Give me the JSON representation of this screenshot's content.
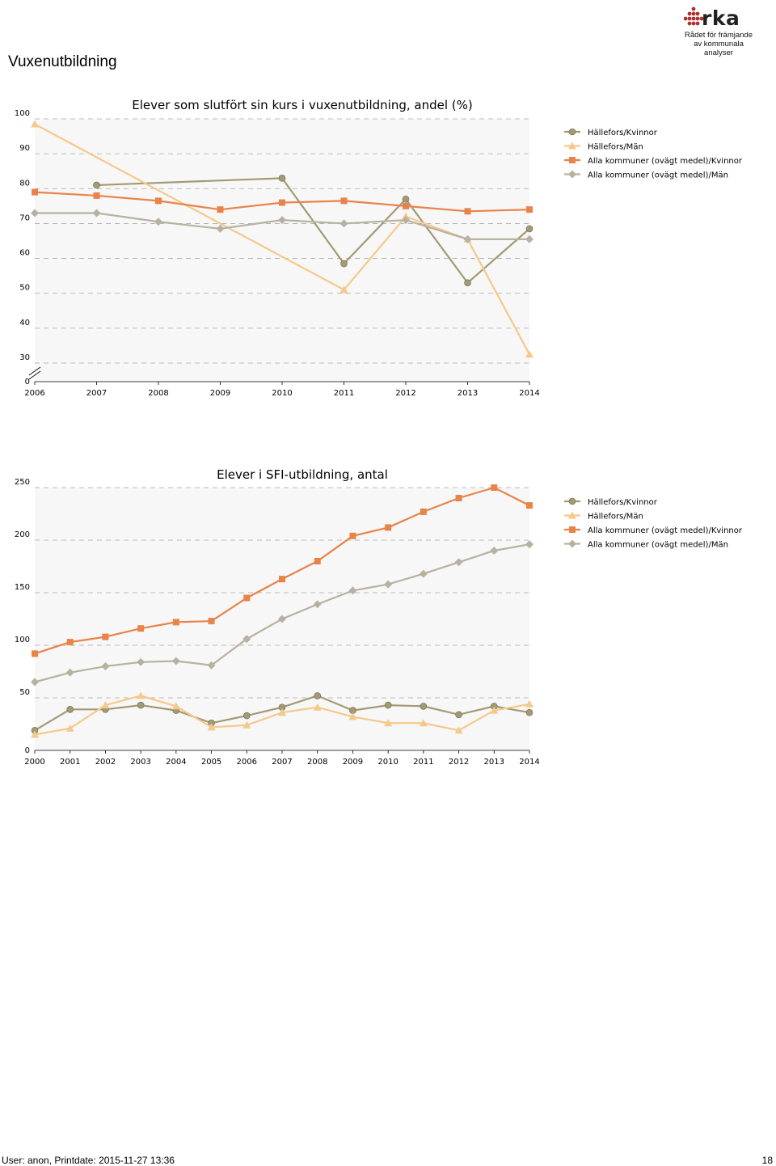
{
  "page": {
    "title": "Vuxenutbildning"
  },
  "logo": {
    "brand": "rka",
    "line1": "Rådet för främjande",
    "line2": "av kommunala analyser"
  },
  "footer": {
    "left": "User: anon, Printdate: 2015-11-27 13:36",
    "right": "18"
  },
  "colors": {
    "hf_kvinnor": "#a39a73",
    "hf_man": "#f5c98b",
    "alla_kvinnor": "#e8834a",
    "alla_man": "#b7b2a0",
    "plot_bg": "#f7f7f7",
    "grid": "#a8a8a8"
  },
  "chart_data": [
    {
      "type": "line",
      "title": "Elever som slutfört sin kurs i vuxenutbildning, andel (%)",
      "xlabel": "",
      "ylabel": "",
      "x": [
        "2006",
        "2007",
        "2008",
        "2009",
        "2010",
        "2011",
        "2012",
        "2013",
        "2014"
      ],
      "ylim": [
        0,
        100
      ],
      "y_axis_break": true,
      "yticks": [
        "0",
        "30",
        "40",
        "50",
        "60",
        "70",
        "80",
        "90",
        "100"
      ],
      "grid": true,
      "legend": "right",
      "series": [
        {
          "name": "Hällefors/Kvinnor",
          "marker": "circle",
          "values": [
            null,
            81,
            null,
            null,
            83,
            58.5,
            77,
            53,
            68.5
          ]
        },
        {
          "name": "Hällefors/Män",
          "marker": "triangle",
          "values": [
            98.5,
            null,
            null,
            null,
            null,
            51,
            72,
            65.5,
            32.5
          ]
        },
        {
          "name": "Alla kommuner (ovägt medel)/Kvinnor",
          "marker": "square",
          "values": [
            79,
            78,
            76.5,
            74,
            76,
            76.5,
            75,
            73.5,
            74
          ]
        },
        {
          "name": "Alla kommuner (ovägt medel)/Män",
          "marker": "diamond",
          "values": [
            73,
            73,
            70.5,
            68.5,
            71,
            70,
            71,
            65.5,
            65.5
          ]
        }
      ]
    },
    {
      "type": "line",
      "title": "Elever i SFI-utbildning, antal",
      "xlabel": "",
      "ylabel": "",
      "x": [
        "2000",
        "2001",
        "2002",
        "2003",
        "2004",
        "2005",
        "2006",
        "2007",
        "2008",
        "2009",
        "2010",
        "2011",
        "2012",
        "2013",
        "2014"
      ],
      "ylim": [
        0,
        250
      ],
      "yticks": [
        "0",
        "50",
        "100",
        "150",
        "200",
        "250"
      ],
      "grid": true,
      "legend": "right",
      "series": [
        {
          "name": "Hällefors/Kvinnor",
          "marker": "circle",
          "values": [
            19,
            39,
            39,
            43,
            38,
            26,
            33,
            41,
            52,
            38,
            43,
            42,
            34,
            42,
            36
          ]
        },
        {
          "name": "Hällefors/Män",
          "marker": "triangle",
          "values": [
            15,
            21,
            43,
            52,
            42,
            22,
            24,
            36,
            41,
            32,
            26,
            26,
            19,
            38,
            44
          ]
        },
        {
          "name": "Alla kommuner (ovägt medel)/Kvinnor",
          "marker": "square",
          "values": [
            92,
            103,
            108,
            116,
            122,
            123,
            145,
            163,
            180,
            204,
            212,
            227,
            240,
            250,
            233
          ]
        },
        {
          "name": "Alla kommuner (ovägt medel)/Män",
          "marker": "diamond",
          "values": [
            65,
            74,
            80,
            84,
            85,
            81,
            106,
            125,
            139,
            152,
            158,
            168,
            179,
            190,
            196
          ]
        }
      ]
    }
  ]
}
